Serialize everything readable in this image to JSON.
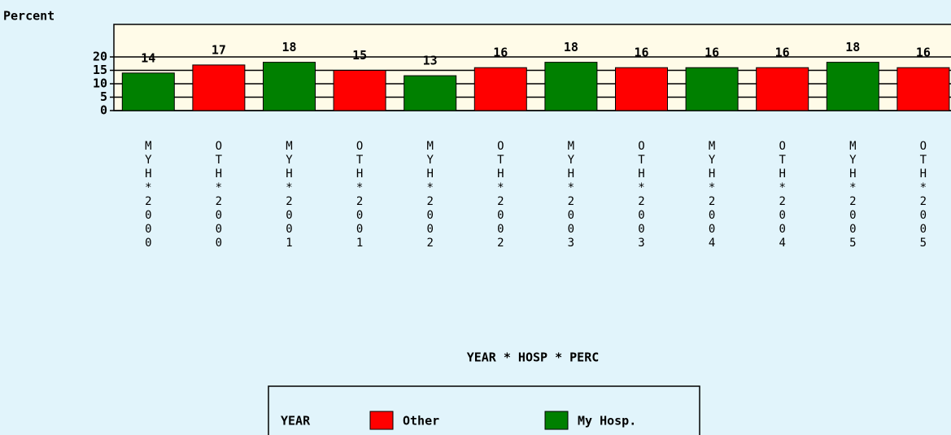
{
  "chart_data": {
    "type": "bar",
    "title": "Percent",
    "x_label": "YEAR * HOSP * PERC",
    "categories": [
      "MYH*2000",
      "OTH*2000",
      "MYH*2001",
      "OTH*2001",
      "MYH*2002",
      "OTH*2002",
      "MYH*2003",
      "OTH*2003",
      "MYH*2004",
      "OTH*2004",
      "MYH*2005",
      "OTH*2005"
    ],
    "series": [
      {
        "name": "Other",
        "color": "#ff0000",
        "values": [
          null,
          17,
          null,
          15,
          null,
          16,
          null,
          16,
          null,
          16,
          null,
          16
        ]
      },
      {
        "name": "My Hosp.",
        "color": "#008000",
        "values": [
          14,
          null,
          18,
          null,
          13,
          null,
          18,
          null,
          16,
          null,
          18,
          null
        ]
      }
    ],
    "legend_title": "YEAR",
    "ylim": [
      0,
      20
    ],
    "yticks": [
      0,
      5,
      10,
      15,
      20
    ],
    "grid": true
  }
}
